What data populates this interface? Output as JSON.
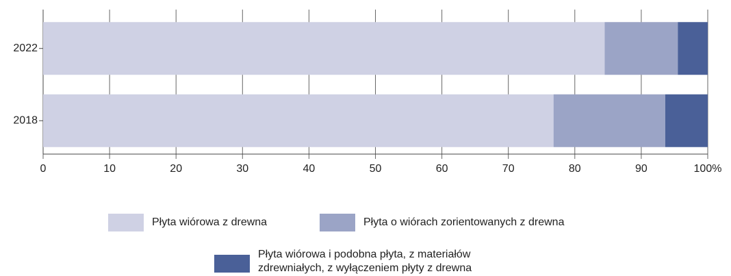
{
  "chart_data": {
    "type": "stacked-barh",
    "categories": [
      "2022",
      "2018"
    ],
    "series": [
      {
        "name": "Płyta wiórowa z drewna",
        "color": "#cfd1e4",
        "values": [
          84.5,
          76.8
        ]
      },
      {
        "name": "Płyta o wiórach zorientowanych z drewna",
        "color": "#9ba4c6",
        "values": [
          11.0,
          16.8
        ]
      },
      {
        "name": "Płyta wiórowa i podobna płyta, z materiałów zdrewniałych, z wyłączeniem płyty z drewna",
        "color": "#4a6098",
        "values": [
          4.5,
          6.4
        ]
      }
    ],
    "xlim": [
      0,
      100
    ],
    "xticks": [
      0,
      10,
      20,
      30,
      40,
      50,
      60,
      70,
      80,
      90,
      {
        "value": 100,
        "label": "100%"
      }
    ],
    "grid": true,
    "legend": "bottom"
  }
}
